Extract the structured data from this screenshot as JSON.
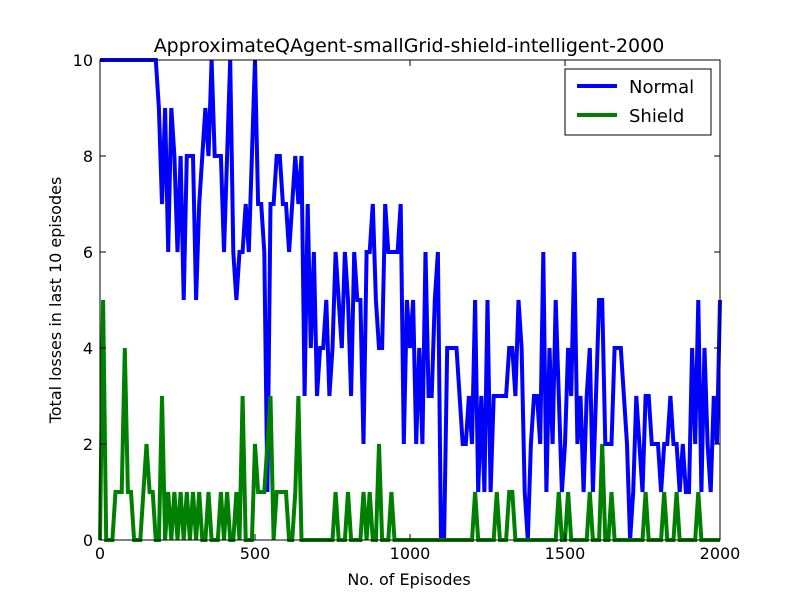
{
  "chart_data": {
    "type": "line",
    "title": "ApproximateQAgent-smallGrid-shield-intelligent-2000",
    "xlabel": "No. of Episodes",
    "ylabel": "Total losses in last 10 episodes",
    "xlim": [
      0,
      2000
    ],
    "ylim": [
      0,
      10
    ],
    "xticks": [
      0,
      500,
      1000,
      1500,
      2000
    ],
    "yticks": [
      0,
      2,
      4,
      6,
      8,
      10
    ],
    "grid": false,
    "legend_position": "top-right",
    "series": [
      {
        "name": "Normal",
        "color": "#0000ff",
        "x": [
          0,
          10,
          20,
          30,
          40,
          50,
          60,
          70,
          80,
          90,
          100,
          110,
          120,
          130,
          140,
          150,
          160,
          170,
          180,
          190,
          200,
          210,
          220,
          230,
          240,
          250,
          260,
          270,
          280,
          290,
          300,
          310,
          320,
          330,
          340,
          350,
          360,
          370,
          380,
          390,
          400,
          410,
          420,
          430,
          440,
          450,
          460,
          470,
          480,
          490,
          500,
          510,
          520,
          530,
          540,
          550,
          560,
          570,
          580,
          590,
          600,
          610,
          620,
          630,
          640,
          650,
          660,
          670,
          680,
          690,
          700,
          710,
          720,
          730,
          740,
          750,
          760,
          770,
          780,
          790,
          800,
          810,
          820,
          830,
          840,
          850,
          860,
          870,
          880,
          890,
          900,
          910,
          920,
          930,
          940,
          950,
          960,
          970,
          980,
          990,
          1000,
          1010,
          1020,
          1030,
          1040,
          1050,
          1060,
          1070,
          1080,
          1090,
          1100,
          1110,
          1120,
          1130,
          1140,
          1150,
          1160,
          1170,
          1180,
          1190,
          1200,
          1210,
          1220,
          1230,
          1240,
          1250,
          1260,
          1270,
          1280,
          1290,
          1300,
          1310,
          1320,
          1330,
          1340,
          1350,
          1360,
          1370,
          1380,
          1390,
          1400,
          1410,
          1420,
          1430,
          1440,
          1450,
          1460,
          1470,
          1480,
          1490,
          1500,
          1510,
          1520,
          1530,
          1540,
          1550,
          1560,
          1570,
          1580,
          1590,
          1600,
          1610,
          1620,
          1630,
          1640,
          1650,
          1660,
          1670,
          1680,
          1690,
          1700,
          1710,
          1720,
          1730,
          1740,
          1750,
          1760,
          1770,
          1780,
          1790,
          1800,
          1810,
          1820,
          1830,
          1840,
          1850,
          1860,
          1870,
          1880,
          1890,
          1900,
          1910,
          1920,
          1930,
          1940,
          1950,
          1960,
          1970,
          1980,
          1990,
          2000
        ],
        "y": [
          10,
          10,
          10,
          10,
          10,
          10,
          10,
          10,
          10,
          10,
          10,
          10,
          10,
          10,
          10,
          10,
          10,
          10,
          10,
          9,
          7,
          9,
          6,
          9,
          8,
          6,
          8,
          5,
          8,
          8,
          8,
          5,
          7,
          8,
          9,
          8,
          10,
          8,
          8,
          8,
          6,
          8,
          10,
          6,
          5,
          6,
          6,
          7,
          6,
          8,
          10,
          7,
          7,
          6,
          1,
          7,
          7,
          8,
          8,
          7,
          7,
          6,
          7,
          8,
          7,
          8,
          3,
          7,
          4,
          6,
          3,
          4,
          4,
          5,
          3,
          4,
          6,
          5,
          4,
          6,
          5,
          3,
          6,
          5,
          5,
          2,
          6,
          6,
          7,
          5,
          4,
          4,
          7,
          6,
          6,
          6,
          6,
          7,
          2,
          5,
          4,
          5,
          2,
          4,
          2,
          6,
          3,
          3,
          5,
          6,
          0,
          0,
          4,
          4,
          4,
          4,
          3,
          2,
          2,
          3,
          2,
          5,
          1,
          3,
          1,
          5,
          1,
          3,
          3,
          3,
          3,
          3,
          4,
          4,
          3,
          5,
          4,
          1,
          0,
          2,
          3,
          3,
          2,
          6,
          1,
          4,
          2,
          5,
          3,
          1,
          2,
          4,
          3,
          6,
          2,
          3,
          1,
          3,
          4,
          1,
          3,
          5,
          5,
          2,
          2,
          2,
          4,
          4,
          4,
          3,
          2,
          0,
          1,
          3,
          2,
          1,
          3,
          3,
          2,
          2,
          2,
          1,
          2,
          2,
          3,
          2,
          2,
          1,
          2,
          1,
          1,
          4,
          2,
          5,
          1,
          4,
          2,
          1,
          3,
          2,
          5
        ]
      },
      {
        "name": "Shield",
        "color": "#008000",
        "x": [
          0,
          10,
          20,
          30,
          40,
          50,
          60,
          70,
          80,
          90,
          100,
          110,
          120,
          130,
          140,
          150,
          160,
          170,
          180,
          190,
          200,
          210,
          220,
          230,
          240,
          250,
          260,
          270,
          280,
          290,
          300,
          310,
          320,
          330,
          340,
          350,
          360,
          370,
          380,
          390,
          400,
          410,
          420,
          430,
          440,
          450,
          460,
          470,
          480,
          490,
          500,
          510,
          520,
          530,
          540,
          550,
          560,
          570,
          580,
          590,
          600,
          610,
          620,
          630,
          640,
          650,
          660,
          670,
          680,
          690,
          700,
          710,
          720,
          730,
          740,
          750,
          760,
          770,
          780,
          790,
          800,
          810,
          820,
          830,
          840,
          850,
          860,
          870,
          880,
          890,
          900,
          910,
          920,
          930,
          940,
          950,
          960,
          970,
          980,
          990,
          1000,
          1010,
          1020,
          1030,
          1040,
          1050,
          1060,
          1070,
          1080,
          1090,
          1100,
          1110,
          1120,
          1130,
          1140,
          1150,
          1160,
          1170,
          1180,
          1190,
          1200,
          1210,
          1220,
          1230,
          1240,
          1250,
          1260,
          1270,
          1280,
          1290,
          1300,
          1310,
          1320,
          1330,
          1340,
          1350,
          1360,
          1370,
          1380,
          1390,
          1400,
          1410,
          1420,
          1430,
          1440,
          1450,
          1460,
          1470,
          1480,
          1490,
          1500,
          1510,
          1520,
          1530,
          1540,
          1550,
          1560,
          1570,
          1580,
          1590,
          1600,
          1610,
          1620,
          1630,
          1640,
          1650,
          1660,
          1670,
          1680,
          1690,
          1700,
          1710,
          1720,
          1730,
          1740,
          1750,
          1760,
          1770,
          1780,
          1790,
          1800,
          1810,
          1820,
          1830,
          1840,
          1850,
          1860,
          1870,
          1880,
          1890,
          1900,
          1910,
          1920,
          1930,
          1940,
          1950,
          1960,
          1970,
          1980,
          1990,
          2000
        ],
        "y": [
          0,
          5,
          0,
          0,
          0,
          1,
          1,
          1,
          4,
          1,
          1,
          0,
          0,
          0,
          1,
          2,
          1,
          1,
          0,
          0,
          3,
          0,
          1,
          0,
          1,
          0,
          1,
          0,
          1,
          0,
          1,
          0,
          1,
          0,
          0,
          1,
          0,
          0,
          0,
          1,
          0,
          1,
          0,
          0,
          1,
          0,
          3,
          0,
          0,
          0,
          2,
          1,
          1,
          1,
          2,
          3,
          0,
          1,
          1,
          1,
          1,
          0,
          0,
          1,
          3,
          0,
          0,
          0,
          0,
          0,
          0,
          0,
          0,
          0,
          0,
          0,
          1,
          0,
          0,
          0,
          1,
          0,
          0,
          0,
          0,
          1,
          0,
          1,
          0,
          0,
          2,
          0,
          0,
          0,
          1,
          0,
          0,
          0,
          0,
          0,
          0,
          0,
          0,
          0,
          0,
          0,
          0,
          0,
          0,
          0,
          0,
          0,
          0,
          0,
          0,
          0,
          0,
          0,
          0,
          0,
          0,
          1,
          0,
          0,
          0,
          0,
          0,
          0,
          1,
          0,
          0,
          0,
          1,
          1,
          0,
          0,
          0,
          0,
          0,
          0,
          0,
          0,
          0,
          0,
          0,
          0,
          0,
          0,
          1,
          0,
          0,
          1,
          0,
          0,
          0,
          0,
          0,
          0,
          1,
          0,
          0,
          0,
          2,
          0,
          0,
          1,
          0,
          0,
          0,
          0,
          0,
          0,
          0,
          0,
          0,
          0,
          1,
          0,
          0,
          0,
          0,
          0,
          1,
          0,
          0,
          0,
          1,
          0,
          0,
          0,
          0,
          0,
          0,
          1,
          0,
          0,
          0,
          0,
          0,
          0,
          0
        ]
      }
    ]
  }
}
